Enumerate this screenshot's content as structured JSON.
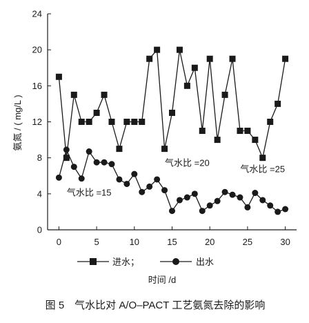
{
  "chart_data": {
    "type": "line",
    "title": "",
    "xlabel": "时间 /d",
    "ylabel": "氨氮 / ( mg/L )",
    "xlim": [
      -1.5,
      31.5
    ],
    "ylim": [
      0,
      24
    ],
    "xticks": [
      0,
      5,
      10,
      15,
      20,
      25,
      30
    ],
    "yticks": [
      0,
      4,
      8,
      12,
      16,
      20,
      24
    ],
    "grid": false,
    "legend_position": "bottom",
    "series": [
      {
        "name": "进水；",
        "marker": "square",
        "x": [
          0,
          1,
          2,
          3,
          4,
          5,
          6,
          7,
          8,
          9,
          10,
          11,
          12,
          13,
          14,
          15,
          16,
          17,
          18,
          19,
          20,
          21,
          22,
          23,
          24,
          25,
          26,
          27,
          28,
          29,
          30
        ],
        "values": [
          17,
          8,
          15,
          12,
          12,
          13,
          15,
          12,
          9,
          12,
          12,
          12,
          19,
          20,
          9,
          13,
          20,
          16,
          18,
          11,
          19,
          10,
          15,
          19,
          11,
          11,
          10,
          8,
          12,
          14,
          19
        ]
      },
      {
        "name": "出水",
        "marker": "circle",
        "x": [
          0,
          1,
          2,
          3,
          4,
          5,
          6,
          7,
          8,
          9,
          10,
          11,
          12,
          13,
          14,
          15,
          16,
          17,
          18,
          19,
          20,
          21,
          22,
          23,
          24,
          25,
          26,
          27,
          28,
          29,
          30
        ],
        "values": [
          5.8,
          8.9,
          7.0,
          5.7,
          8.7,
          7.5,
          7.5,
          7.3,
          5.6,
          5.1,
          6.2,
          4.2,
          4.8,
          5.6,
          4.4,
          2.1,
          3.3,
          3.6,
          4.0,
          2.1,
          2.7,
          3.2,
          4.2,
          3.9,
          3.6,
          2.5,
          4.1,
          3.3,
          2.7,
          2.0,
          2.3
        ]
      }
    ],
    "annotations": [
      {
        "text": "气水比 =15",
        "x": 4,
        "y": 3.8
      },
      {
        "text": "气水比 =20",
        "x": 17,
        "y": 7.1
      },
      {
        "text": "气水比 =25",
        "x": 27,
        "y": 6.4
      }
    ]
  },
  "caption": "图 5　气水比对 A/O–PACT 工艺氨氮去除的影响"
}
